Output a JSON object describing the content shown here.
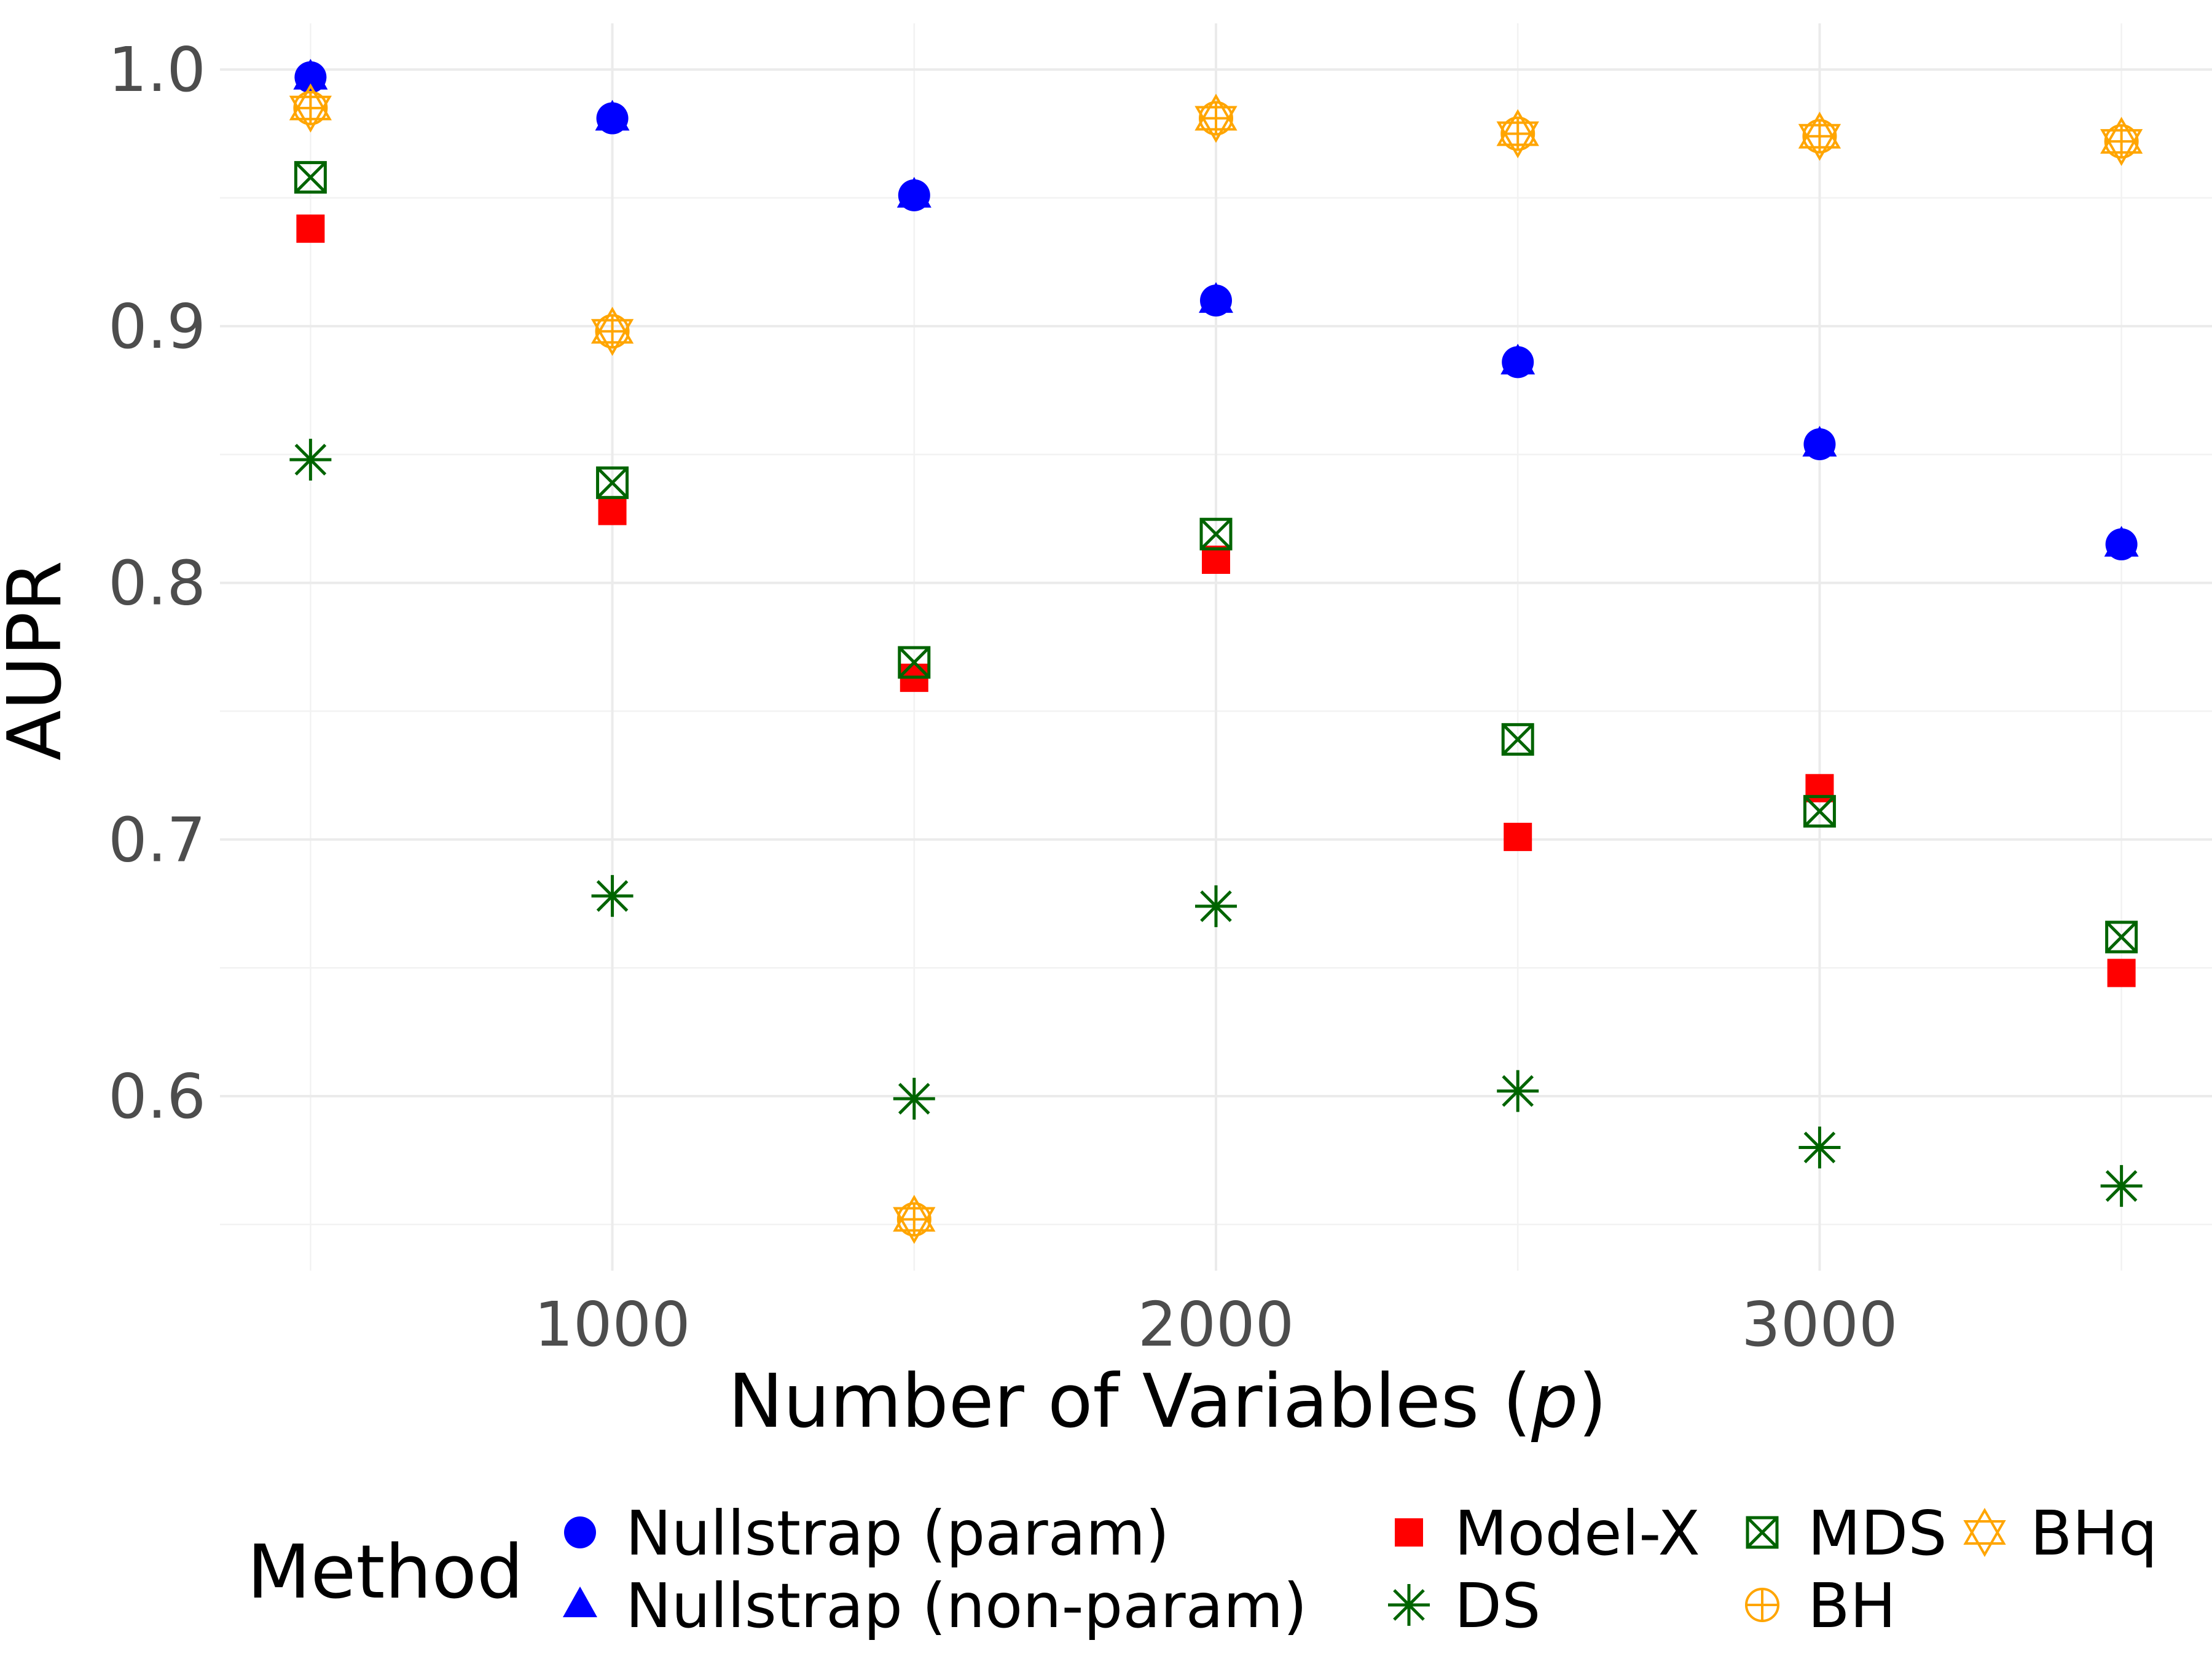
{
  "chart_data": {
    "type": "scatter",
    "title": "",
    "xlabel_prefix": "Number of Variables (",
    "xlabel_var": "p",
    "xlabel_suffix": ")",
    "ylabel": "AUPR",
    "x": [
      500,
      1000,
      1500,
      2000,
      2500,
      3000,
      3500
    ],
    "xlim": [
      350,
      3650
    ],
    "ylim": [
      0.532,
      1.018
    ],
    "xticks": [
      1000,
      2000,
      3000
    ],
    "xtick_labels": [
      "1000",
      "2000",
      "3000"
    ],
    "yticks": [
      0.6,
      0.7,
      0.8,
      0.9,
      1.0
    ],
    "ytick_labels": [
      "0.6",
      "0.7",
      "0.8",
      "0.9",
      "1.0"
    ],
    "grid": true,
    "legend_title": "Method",
    "legend_position": "bottom",
    "series": [
      {
        "name": "Nullstrap (param)",
        "marker": "circle",
        "color": "#0000ff",
        "values": [
          0.997,
          0.981,
          0.951,
          0.91,
          0.886,
          0.854,
          0.815
        ]
      },
      {
        "name": "Nullstrap (non-param)",
        "marker": "triangle",
        "color": "#0000ff",
        "values": [
          0.997,
          0.981,
          0.951,
          0.91,
          0.886,
          0.854,
          0.815
        ]
      },
      {
        "name": "Model-X",
        "marker": "square",
        "color": "#ff0000",
        "values": [
          0.938,
          0.828,
          0.763,
          0.809,
          0.701,
          0.72,
          0.648
        ]
      },
      {
        "name": "DS",
        "marker": "asterisk",
        "color": "#006400",
        "values": [
          0.848,
          0.678,
          0.599,
          0.674,
          0.602,
          0.58,
          0.565
        ]
      },
      {
        "name": "MDS",
        "marker": "boxcross",
        "color": "#006400",
        "values": [
          0.958,
          0.839,
          0.769,
          0.819,
          0.739,
          0.711,
          0.662
        ]
      },
      {
        "name": "BH",
        "marker": "circleplus",
        "color": "#ffa500",
        "values": [
          0.985,
          0.898,
          0.552,
          0.981,
          0.975,
          0.974,
          0.972
        ]
      },
      {
        "name": "BHq",
        "marker": "star",
        "color": "#ffa500",
        "values": [
          0.985,
          0.898,
          0.552,
          0.981,
          0.975,
          0.974,
          0.972
        ]
      }
    ]
  }
}
